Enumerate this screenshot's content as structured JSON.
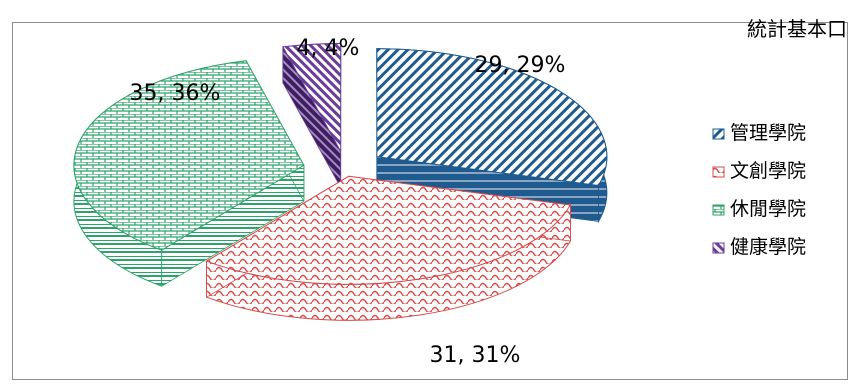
{
  "header": {
    "corner_text": "統計基本口"
  },
  "chart_data": {
    "type": "pie",
    "categories": [
      "管理學院",
      "文創學院",
      "休閒學院",
      "健康學院"
    ],
    "values": [
      29,
      31,
      35,
      4
    ],
    "percentages": [
      29,
      31,
      36,
      4
    ],
    "data_labels": [
      "29, 29%",
      "31, 31%",
      "35, 36%",
      "4, 4%"
    ],
    "legend_placement": "right",
    "exploded": true,
    "three_d": true,
    "colors": [
      "#1f5b8f",
      "#d94a4a",
      "#2ea36b",
      "#6a3d9a"
    ]
  }
}
